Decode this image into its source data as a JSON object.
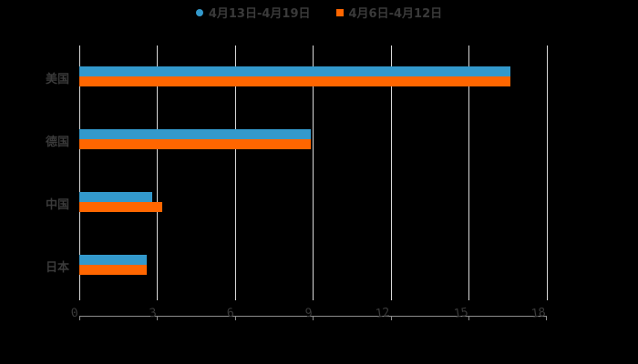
{
  "legend": {
    "series1_label": "4月13日-4月19日",
    "series2_label": "4月6日-4月12日"
  },
  "colors": {
    "series1": "#3399cc",
    "series2": "#ff6600",
    "background": "#000000",
    "grid": "#d9d9d9",
    "text": "#3a3a3a"
  },
  "axis": {
    "ticks": [
      "0",
      "3",
      "6",
      "9",
      "12",
      "15",
      "18"
    ]
  },
  "categories": [
    "美国",
    "德国",
    "中国",
    "日本"
  ],
  "chart_data": {
    "type": "bar",
    "orientation": "horizontal",
    "title": "",
    "xlabel": "",
    "ylabel": "",
    "categories": [
      "美国",
      "德国",
      "中国",
      "日本"
    ],
    "series": [
      {
        "name": "4月13日-4月19日",
        "color": "#3399cc",
        "values": [
          16.6,
          8.9,
          2.8,
          2.6
        ]
      },
      {
        "name": "4月6日-4月12日",
        "color": "#ff6600",
        "values": [
          16.6,
          8.9,
          3.2,
          2.6
        ]
      }
    ],
    "xlim": [
      0,
      18
    ],
    "x_ticks": [
      0,
      3,
      6,
      9,
      12,
      15,
      18
    ],
    "grid": true,
    "legend_position": "top"
  }
}
